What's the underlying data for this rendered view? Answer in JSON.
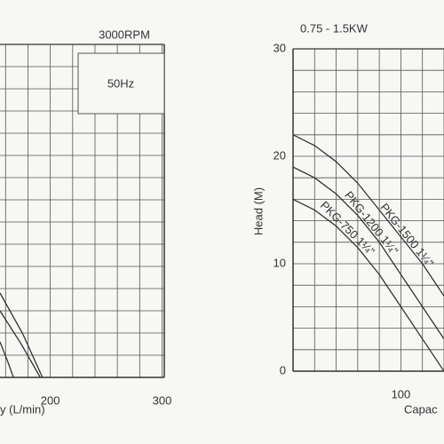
{
  "chart_data": [
    {
      "type": "line",
      "title": "3000RPM",
      "annotation": "50Hz",
      "xlabel": "y (L/min)",
      "xlim": [
        155,
        302
      ],
      "ylim": [
        0,
        30
      ],
      "xticks": [
        200,
        300
      ],
      "x_grid": [
        160,
        180,
        200,
        220,
        240,
        260,
        280,
        300
      ],
      "y_grid": [
        0,
        2,
        4,
        6,
        8,
        10,
        12,
        14,
        16,
        18,
        20,
        22,
        24,
        26,
        28,
        30
      ],
      "color": "#333333",
      "series": [
        {
          "x": [
            155,
            175,
            193
          ],
          "values": [
            7.6,
            4,
            0
          ]
        },
        {
          "x": [
            155,
            174,
            191
          ],
          "values": [
            6,
            3,
            0
          ]
        },
        {
          "x": [
            155,
            162,
            167
          ],
          "values": [
            3.2,
            1.4,
            0
          ]
        }
      ]
    },
    {
      "type": "line",
      "title": "0.75 - 1.5KW",
      "xlabel": "Capac",
      "ylabel": "Head (M)",
      "xlim": [
        0,
        140
      ],
      "ylim": [
        0,
        30
      ],
      "xticks": [
        100
      ],
      "yticks": [
        0,
        10,
        20,
        30
      ],
      "x_grid": [
        0,
        20,
        40,
        60,
        80,
        100,
        120,
        140
      ],
      "y_grid": [
        0,
        2,
        4,
        6,
        8,
        10,
        12,
        14,
        16,
        18,
        20,
        22,
        24,
        26,
        28,
        30
      ],
      "color": "#333333",
      "x": [
        0,
        20,
        40,
        60,
        80,
        100,
        120,
        140
      ],
      "series": [
        {
          "name": "PKG-1500 1¼\"",
          "values": [
            22,
            21,
            19.5,
            17.5,
            15,
            12.5,
            10,
            7
          ]
        },
        {
          "name": "PKG-1200 1¼\"",
          "values": [
            19,
            18,
            16.5,
            14.5,
            12,
            9,
            6,
            3
          ]
        },
        {
          "name": "PKG-750 1¼\"",
          "values": [
            16,
            15,
            13.5,
            11.5,
            9,
            6,
            3,
            0
          ]
        }
      ]
    }
  ]
}
